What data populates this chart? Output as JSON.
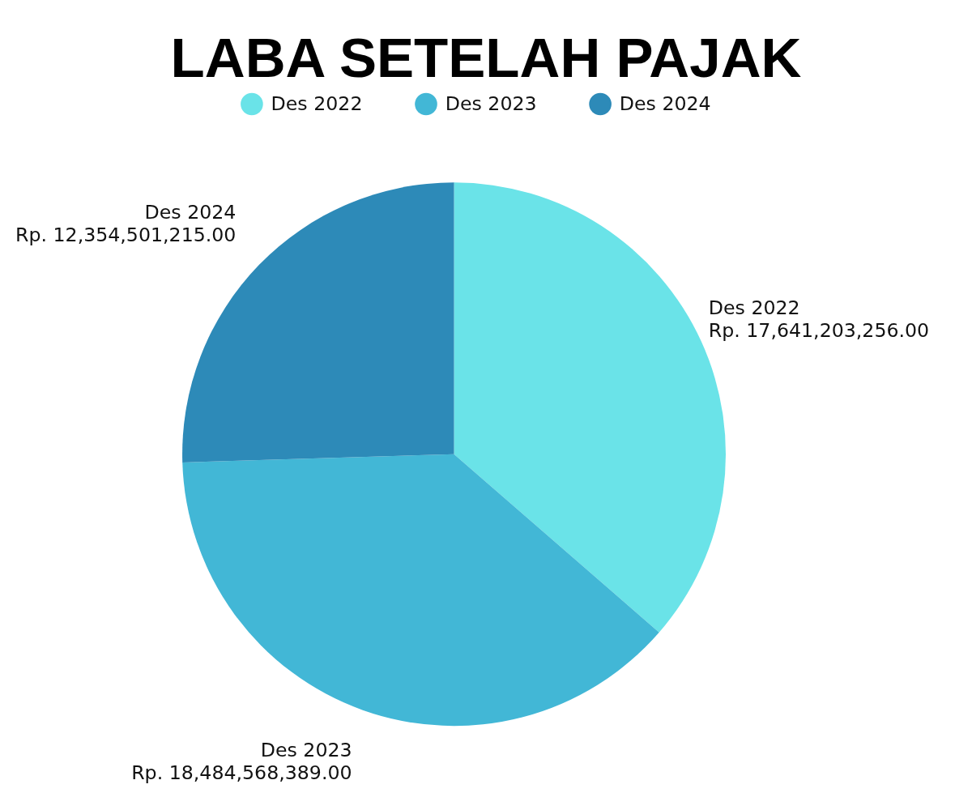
{
  "chart_data": {
    "type": "pie",
    "title": "LABA SETELAH PAJAK",
    "categories": [
      "Des 2022",
      "Des 2023",
      "Des 2024"
    ],
    "values": [
      17641203256,
      18484568389,
      12354501215
    ],
    "value_labels": [
      "Rp. 17,641,203,256.00",
      "Rp. 18,484,568,389.00",
      "Rp. 12,354,501,215.00"
    ],
    "colors": [
      "#6ae3e8",
      "#42b7d6",
      "#2d8ab8"
    ],
    "legend": "top"
  }
}
